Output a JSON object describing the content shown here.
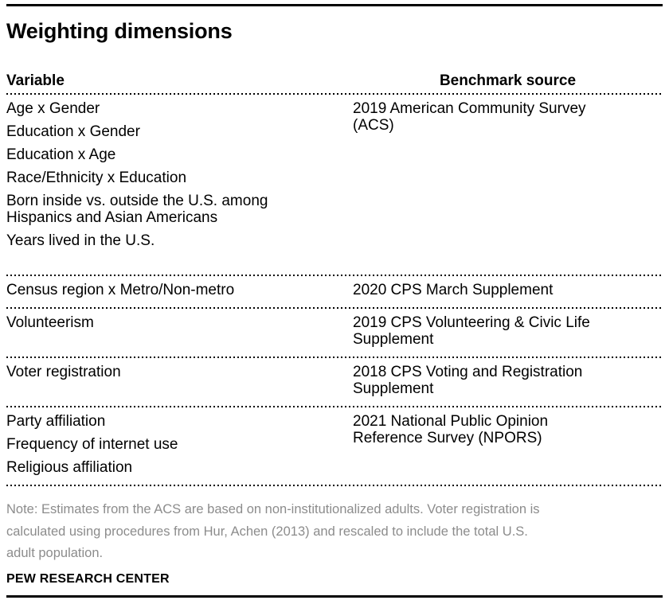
{
  "colors": {
    "text": "#000000",
    "note_text": "#8C8C8C",
    "rule": "#000000"
  },
  "header": {
    "title": "Weighting dimensions"
  },
  "table": {
    "columns": {
      "variable": "Variable",
      "source": "Benchmark source"
    },
    "rows": [
      {
        "variables": [
          "Age x Gender",
          "Education x Gender",
          "Education x Age",
          "Race/Ethnicity x Education",
          "Born inside vs. outside the U.S. among\nHispanics and Asian Americans",
          "Years lived in the U.S."
        ],
        "source": "2019 American Community Survey\n(ACS)"
      },
      {
        "variables": [
          "Census region x Metro/Non-metro"
        ],
        "source": "2020 CPS March Supplement"
      },
      {
        "variables": [
          "Volunteerism"
        ],
        "source": "2019 CPS Volunteering & Civic Life\nSupplement"
      },
      {
        "variables": [
          "Voter registration"
        ],
        "source": "2018 CPS Voting and Registration\nSupplement"
      },
      {
        "variables": [
          "Party affiliation",
          "Frequency of internet use",
          "Religious affiliation"
        ],
        "source": "2021 National Public Opinion\nReference Survey (NPORS)"
      }
    ]
  },
  "note": "Note: Estimates from the ACS are based on non-institutionalized adults. Voter registration is\ncalculated using procedures from Hur, Achen (2013) and rescaled to include the total U.S.\nadult population.",
  "footer": "PEW RESEARCH CENTER"
}
